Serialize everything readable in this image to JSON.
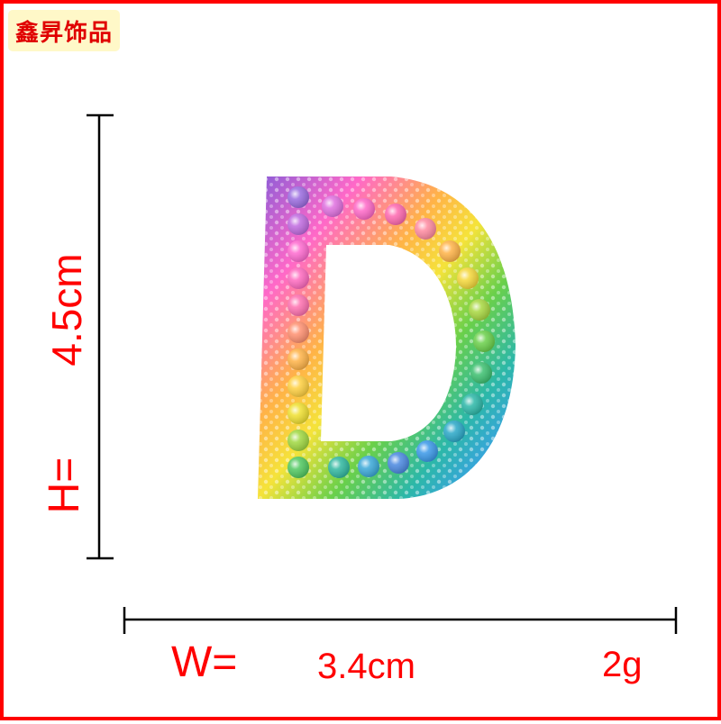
{
  "brand": {
    "name": "鑫昇饰品"
  },
  "product": {
    "name": "D-letter-charm",
    "height_label": "H=",
    "height_value": "4.5cm",
    "width_label": "W=",
    "width_value": "3.4cm",
    "weight_value": "2g"
  },
  "colors": {
    "frame": "#ff0000",
    "label_text": "#ff0000",
    "badge_bg": "#fff8c8",
    "rainbow": [
      "#8a5cd8",
      "#ff68c8",
      "#ffb347",
      "#f5e33a",
      "#6ad04a",
      "#2cb8a8",
      "#3aa0e8",
      "#6a60d8"
    ]
  }
}
